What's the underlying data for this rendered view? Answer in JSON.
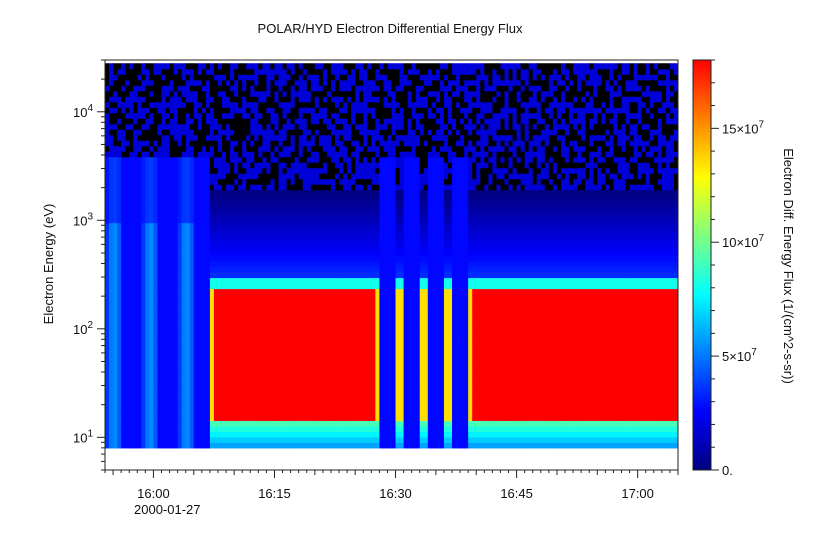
{
  "chart_data": {
    "type": "heatmap",
    "title": "POLAR/HYD  Electron Differential Energy Flux",
    "ylabel": "Electron Energy (eV)",
    "y_scale": "log",
    "ylim": [
      5,
      30000
    ],
    "data_y_range": [
      8,
      28000
    ],
    "y_ticks": [
      {
        "value": 10,
        "base": "10",
        "exp": "1"
      },
      {
        "value": 100,
        "base": "10",
        "exp": "2"
      },
      {
        "value": 1000,
        "base": "10",
        "exp": "3"
      },
      {
        "value": 10000,
        "base": "10",
        "exp": "4"
      }
    ],
    "x_range_minutes": [
      "15:54",
      "17:05"
    ],
    "x_ticks": [
      "16:00",
      "16:15",
      "16:30",
      "16:45",
      "17:00"
    ],
    "x_date_label": "2000-01-27",
    "colorbar": {
      "label": "Electron Diff. Energy Flux (1/(cm^2-s-sr))",
      "range": [
        0,
        180000000
      ],
      "ticks": [
        {
          "value": 0,
          "label": "0."
        },
        {
          "value": 50000000,
          "label": "5×10",
          "exp": "7"
        },
        {
          "value": 100000000,
          "label": "10×10",
          "exp": "7"
        },
        {
          "value": 150000000,
          "label": "15×10",
          "exp": "7"
        }
      ],
      "colormap": [
        "#00007f",
        "#0000ff",
        "#007fff",
        "#00ffff",
        "#7fff7f",
        "#ffff00",
        "#ff7f00",
        "#ff0000"
      ]
    },
    "plasma_sheet": {
      "intervals": [
        [
          "16:07",
          "16:28"
        ],
        [
          "16:30",
          "16:31"
        ],
        [
          "16:33",
          "16:34"
        ],
        [
          "16:36",
          "16:37"
        ],
        [
          "16:39",
          "17:06"
        ]
      ],
      "energy_band_eV": [
        15,
        230
      ],
      "peak_flux": 180000000
    },
    "background_flux_low_energy": 10000000
  }
}
